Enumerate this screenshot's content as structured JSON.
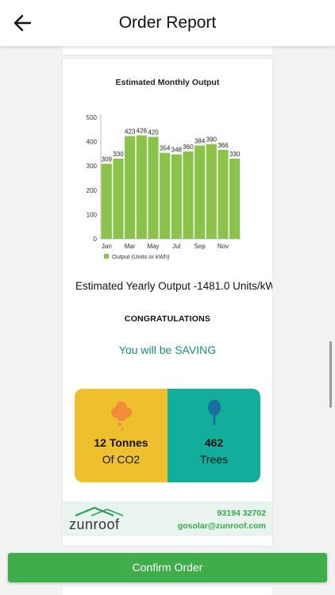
{
  "header": {
    "title": "Order Report",
    "back_icon": "arrow-left-icon"
  },
  "chart_data": {
    "type": "bar",
    "title": "Estimated Monthly Output",
    "categories": [
      "Jan",
      "Feb",
      "Mar",
      "Apr",
      "May",
      "Jun",
      "Jul",
      "Aug",
      "Sep",
      "Oct",
      "Nov",
      "Dec"
    ],
    "x_tick_labels": [
      "Jan",
      "",
      "Mar",
      "",
      "May",
      "",
      "Jul",
      "",
      "Sep",
      "",
      "Nov",
      ""
    ],
    "series": [
      {
        "name": "Output (Units or kWh)",
        "values": [
          309,
          330,
          423,
          426,
          420,
          354,
          348,
          360,
          384,
          390,
          366,
          330
        ],
        "color": "#8bc34a"
      }
    ],
    "yticks": [
      0,
      100,
      200,
      300,
      400,
      500
    ],
    "ylim": [
      0,
      500
    ],
    "xlabel": "",
    "ylabel": "",
    "legend": "bottom-left",
    "grid": false
  },
  "summary": {
    "yearly_output": "Estimated Yearly Output -1481.0 Units/kW",
    "congrats": "CONGRATULATIONS",
    "saving": "You will be SAVING"
  },
  "impact": {
    "co2": {
      "value": "12 Tonnes",
      "unit": "Of CO2",
      "color": "#efc02e",
      "icon": "smoke-cloud-icon"
    },
    "trees": {
      "value": "462",
      "unit": "Trees",
      "color": "#12ae9b",
      "icon": "tree-icon"
    }
  },
  "footer": {
    "brand": "zunroof",
    "phone": "93194 32702",
    "email": "gosolar@zunroof.com"
  },
  "actions": {
    "confirm_label": "Confirm Order"
  },
  "colors": {
    "accent": "#3fae4a",
    "teal": "#12ae9b",
    "yellow": "#efc02e"
  }
}
